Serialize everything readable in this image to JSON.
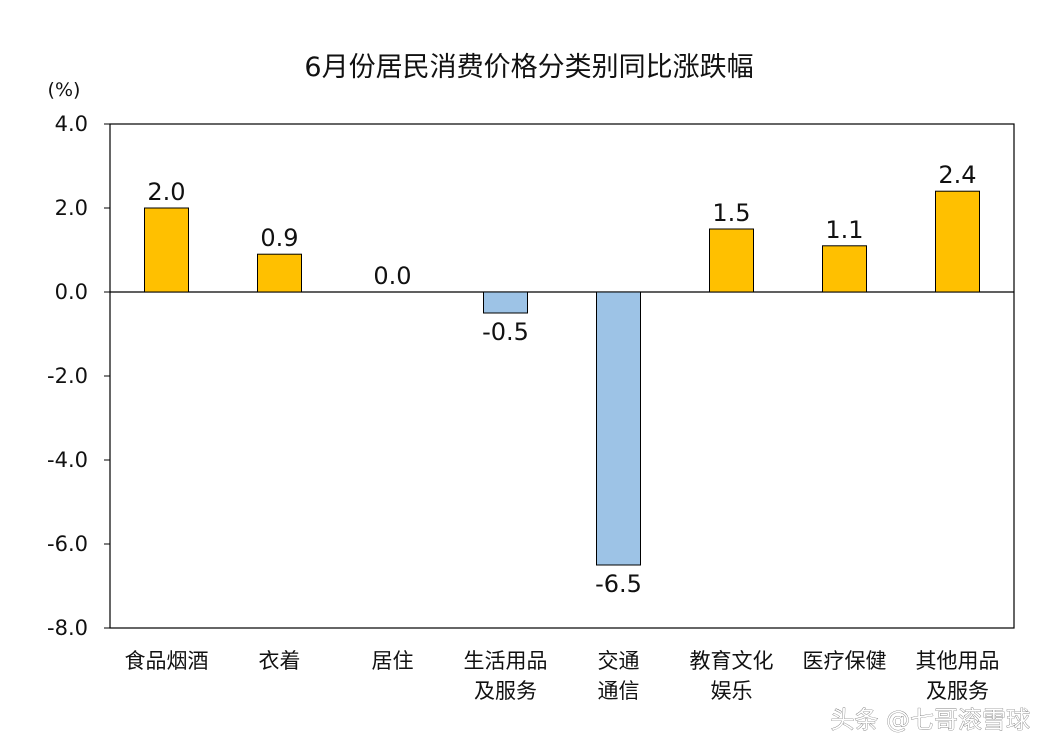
{
  "chart_data": {
    "type": "bar",
    "title": "6月份居民消费价格分类别同比涨跌幅",
    "unit_label": "(%)",
    "ylim": [
      -8.0,
      4.0
    ],
    "yticks": [
      4.0,
      2.0,
      0.0,
      -2.0,
      -4.0,
      -6.0,
      -8.0
    ],
    "ytick_labels": [
      "4.0",
      "2.0",
      "0.0",
      "-2.0",
      "-4.0",
      "-6.0",
      "-8.0"
    ],
    "categories": [
      [
        "食品烟酒"
      ],
      [
        "衣着"
      ],
      [
        "居住"
      ],
      [
        "生活用品",
        "及服务"
      ],
      [
        "交通",
        "通信"
      ],
      [
        "教育文化",
        "娱乐"
      ],
      [
        "医疗保健"
      ],
      [
        "其他用品",
        "及服务"
      ]
    ],
    "values": [
      2.0,
      0.9,
      0.0,
      -0.5,
      -6.5,
      1.5,
      1.1,
      2.4
    ],
    "value_labels": [
      "2.0",
      "0.9",
      "0.0",
      "-0.5",
      "-6.5",
      "1.5",
      "1.1",
      "2.4"
    ],
    "colors": {
      "positive": "#FFC000",
      "negative": "#9DC3E6",
      "bar_stroke": "#000000",
      "frame": "#000000"
    },
    "grid": false,
    "legend": "none"
  },
  "watermark": "头条 @七哥滚雪球"
}
